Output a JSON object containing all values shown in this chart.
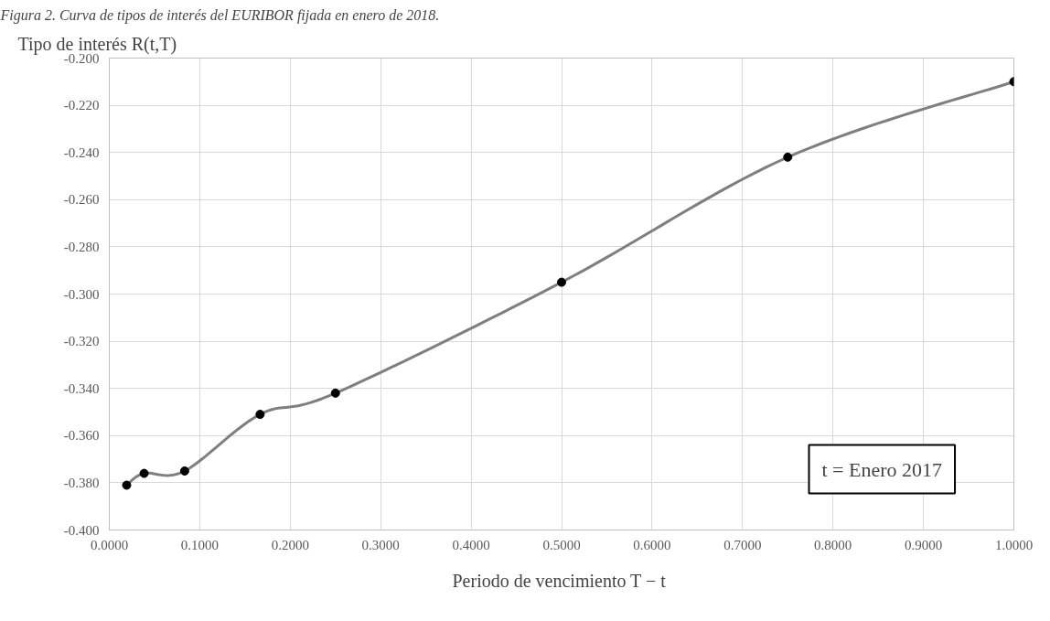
{
  "chart_data": {
    "type": "line",
    "title": "Figura 2. Curva de tipos de interés del EURIBOR fijada en enero de 2018.",
    "ylabel": "Tipo de interés  R(t,T)",
    "xlabel": "Periodo de vencimiento  T − t",
    "x": [
      0.0192,
      0.0385,
      0.0833,
      0.1667,
      0.25,
      0.5,
      0.75,
      1.0
    ],
    "series": [
      {
        "color": "#7f7f7f",
        "values": [
          -0.381,
          -0.376,
          -0.375,
          -0.351,
          -0.342,
          -0.295,
          -0.242,
          -0.21
        ]
      }
    ],
    "xlim": [
      0,
      1.0
    ],
    "ylim": [
      -0.4,
      -0.2
    ],
    "xticks": [
      {
        "value": 0,
        "label": "0.0000"
      },
      {
        "value": 0.1,
        "label": "0.1000"
      },
      {
        "value": 0.2,
        "label": "0.2000"
      },
      {
        "value": 0.3,
        "label": "0.3000"
      },
      {
        "value": 0.4,
        "label": "0.4000"
      },
      {
        "value": 0.5,
        "label": "0.5000"
      },
      {
        "value": 0.6,
        "label": "0.6000"
      },
      {
        "value": 0.7,
        "label": "0.7000"
      },
      {
        "value": 0.8,
        "label": "0.8000"
      },
      {
        "value": 0.9,
        "label": "0.9000"
      },
      {
        "value": 1.0,
        "label": "1.0000"
      }
    ],
    "yticks": [
      {
        "value": -0.4,
        "label": "-0.400"
      },
      {
        "value": -0.38,
        "label": "-0.380"
      },
      {
        "value": -0.36,
        "label": "-0.360"
      },
      {
        "value": -0.34,
        "label": "-0.340"
      },
      {
        "value": -0.32,
        "label": "-0.320"
      },
      {
        "value": -0.3,
        "label": "-0.300"
      },
      {
        "value": -0.28,
        "label": "-0.280"
      },
      {
        "value": -0.26,
        "label": "-0.260"
      },
      {
        "value": -0.24,
        "label": "-0.240"
      },
      {
        "value": -0.22,
        "label": "-0.220"
      },
      {
        "value": -0.2,
        "label": "-0.200"
      }
    ],
    "annotations": [
      "t = Enero 2017"
    ],
    "grid": true,
    "marker": "circle"
  }
}
